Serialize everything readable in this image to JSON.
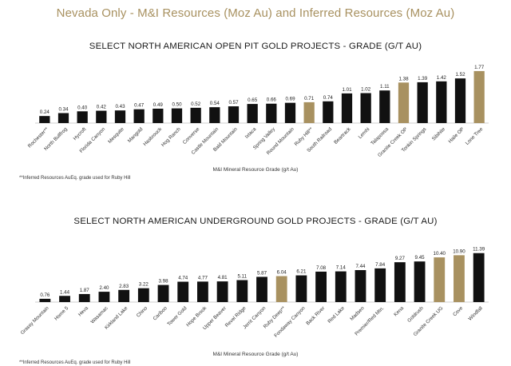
{
  "header": {
    "title": "Nevada Only - M&I Resources (Moz Au) and Inferred Resources (Moz Au)"
  },
  "colors": {
    "title": "#a89160",
    "bar_default": "#111111",
    "bar_highlight": "#a89160"
  },
  "chart_data": [
    {
      "type": "bar",
      "title": "SELECT NORTH AMERICAN OPEN PIT GOLD PROJECTS - GRADE (G/T AU)",
      "xlabel": "M&I Mineral Resource Grade (g/t Au)",
      "ylabel": "",
      "categories": [
        "Rochester**",
        "North Bullfrog",
        "Hycroft",
        "Florida Canyon",
        "Mesquite",
        "Mangold",
        "Hasbrouck",
        "Hog Ranch",
        "Converse",
        "Castle Mountain",
        "Bald Mountain",
        "Ixtaca",
        "Spring Valley",
        "Round Mountain",
        "Ruby Hill**",
        "South Railroad",
        "Beartrack",
        "Lemhi",
        "Talapoosa",
        "Granite Creek OP",
        "Tonkin Springs",
        "Sibihite",
        "Haile OP",
        "Lone Tree"
      ],
      "values": [
        0.24,
        0.34,
        0.4,
        0.42,
        0.43,
        0.47,
        0.49,
        0.5,
        0.52,
        0.54,
        0.57,
        0.65,
        0.66,
        0.69,
        0.71,
        0.74,
        1.01,
        1.02,
        1.11,
        1.38,
        1.39,
        1.42,
        1.52,
        1.77
      ],
      "value_labels": [
        "0.24",
        "0.34",
        "0.40",
        "0.42",
        "0.43",
        "0.47",
        "0.49",
        "0.50",
        "0.52",
        "0.54",
        "0.57",
        "0.65",
        "0.66",
        "0.69",
        "0.71",
        "0.74",
        "1.01",
        "1.02",
        "1.11",
        "1.38",
        "1.39",
        "1.42",
        "1.52",
        "1.77"
      ],
      "highlighted": [
        "Ruby Hill**",
        "Granite Creek OP",
        "Lone Tree"
      ],
      "ylim": [
        0,
        1.85
      ],
      "grid": false,
      "footnote": "**Inferred Resources AuEq. grade used for Ruby Hill"
    },
    {
      "type": "bar",
      "title": "SELECT NORTH AMERICAN UNDERGROUND GOLD PROJECTS - GRADE (G/T AU)",
      "xlabel": "M&I Mineral Resource Grade (g/t Au)",
      "ylabel": "",
      "categories": [
        "Grassy Mountain",
        "Home 5",
        "Heva",
        "Wasamac",
        "Kirkland Lake",
        "Chino",
        "Cariboo",
        "Tower Gold",
        "Hope Brook",
        "Upper Beaver",
        "Revel Ridge",
        "Jerrit Canyon",
        "Ruby Deep**",
        "Fondaway Canyon",
        "Back River",
        "Red Lake",
        "Madsen",
        "Premier/Red Mtn.",
        "Kena",
        "Goldrush",
        "Granite Creek UG",
        "Cove",
        "Windfall"
      ],
      "values": [
        0.76,
        1.44,
        1.87,
        2.4,
        2.83,
        3.22,
        3.98,
        4.74,
        4.77,
        4.81,
        5.11,
        5.87,
        6.04,
        6.21,
        7.08,
        7.14,
        7.44,
        7.84,
        9.27,
        9.45,
        10.4,
        10.9,
        11.39
      ],
      "value_labels": [
        "0.76",
        "1.44",
        "1.87",
        "2.40",
        "2.83",
        "3.22",
        "3.98",
        "4.74",
        "4.77",
        "4.81",
        "5.11",
        "5.87",
        "6.04",
        "6.21",
        "7.08",
        "7.14",
        "7.44",
        "7.84",
        "9.27",
        "9.45",
        "10.40",
        "10.90",
        "11.39"
      ],
      "highlighted": [
        "Ruby Deep**",
        "Granite Creek UG",
        "Cove"
      ],
      "ylim": [
        0,
        11.9
      ],
      "grid": false,
      "footnote": "**Inferred Resources AuEq. grade used for Ruby Hill"
    }
  ]
}
